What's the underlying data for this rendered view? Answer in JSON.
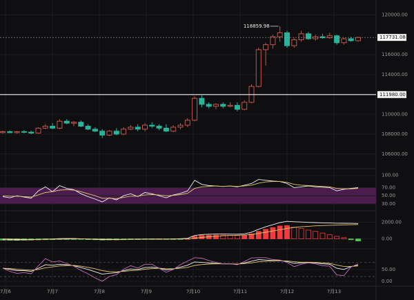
{
  "x_axis": {
    "labels": [
      "7月6",
      "7月7",
      "7月8",
      "7月9",
      "7月10",
      "7月11",
      "7月12",
      "7月13"
    ]
  },
  "chart_data": [
    {
      "type": "candlestick",
      "up_color": "#c4544c",
      "down_color": "#2bb39a",
      "ylim": [
        104800,
        121500
      ],
      "yticks": [
        {
          "value": 106000,
          "label": "106000.00"
        },
        {
          "value": 108000,
          "label": "108000.00"
        },
        {
          "value": 110000,
          "label": "110000.00"
        },
        {
          "value": 114000,
          "label": "114000.00"
        },
        {
          "value": 116000,
          "label": "116000.00"
        },
        {
          "value": 120000,
          "label": "120000.00"
        }
      ],
      "open": [
        108150,
        108250,
        108150,
        108250,
        108200,
        108100,
        108600,
        108800,
        108600,
        109300,
        109100,
        109200,
        108800,
        108500,
        108300,
        107900,
        108300,
        108000,
        108500,
        108700,
        108500,
        108900,
        108800,
        108600,
        108300,
        108700,
        108900,
        109400,
        111600,
        111000,
        110800,
        111000,
        110800,
        110900,
        110500,
        111200,
        112800,
        116500,
        117000,
        117800,
        118200,
        116900,
        117500,
        118100,
        117600,
        117800,
        117700,
        117900,
        117200,
        117600,
        117400
      ],
      "high": [
        108350,
        108350,
        108300,
        108400,
        108350,
        108700,
        109000,
        109100,
        109500,
        109500,
        109300,
        109400,
        109000,
        108700,
        108500,
        108400,
        108600,
        108700,
        108900,
        109000,
        109100,
        109200,
        109000,
        109000,
        108900,
        109100,
        109600,
        111800,
        111900,
        111200,
        111100,
        111200,
        111200,
        111200,
        111400,
        113000,
        116700,
        117200,
        118000,
        118859.98,
        118400,
        117700,
        118400,
        118300,
        118000,
        118100,
        118200,
        118000,
        117700,
        117800,
        117800
      ],
      "low": [
        108050,
        108100,
        108050,
        108100,
        108000,
        108050,
        108500,
        108500,
        108500,
        109000,
        108800,
        108700,
        108400,
        108200,
        107600,
        107800,
        107900,
        107900,
        108400,
        108300,
        108300,
        108600,
        108400,
        108200,
        108200,
        108500,
        108700,
        109300,
        110700,
        110600,
        110500,
        110600,
        110700,
        110300,
        110400,
        111100,
        112700,
        114900,
        116600,
        117300,
        116700,
        116700,
        117300,
        117500,
        117400,
        117600,
        117600,
        117000,
        117000,
        117300,
        117300
      ],
      "close": [
        108250,
        108150,
        108250,
        108200,
        108100,
        108600,
        108800,
        108600,
        109300,
        109100,
        109200,
        108800,
        108500,
        108300,
        107900,
        108300,
        108000,
        108500,
        108700,
        108500,
        108900,
        108800,
        108600,
        108300,
        108700,
        108900,
        109400,
        111600,
        111000,
        110800,
        111000,
        110800,
        110900,
        110500,
        111200,
        112800,
        116500,
        117000,
        117800,
        118200,
        116900,
        117500,
        118100,
        117600,
        117800,
        117700,
        117900,
        117200,
        117600,
        117400,
        117731.08
      ],
      "price_line": {
        "value": 111980,
        "label": "111980.00"
      }
    },
    {
      "type": "line",
      "ylim": [
        25,
        108
      ],
      "yticks": [
        {
          "value": 100,
          "label": "100.00"
        },
        {
          "value": 70,
          "label": "70.00"
        },
        {
          "value": 50,
          "label": "50.00"
        },
        {
          "value": 30,
          "label": "30.00"
        }
      ],
      "band": [
        30,
        70
      ],
      "band_color": "#4b1d4f",
      "series": [
        {
          "color": "#f2f2f2",
          "values": [
            48,
            45,
            50,
            47,
            44,
            62,
            72,
            60,
            75,
            68,
            65,
            55,
            48,
            42,
            35,
            45,
            40,
            50,
            55,
            48,
            58,
            55,
            50,
            45,
            52,
            56,
            62,
            88,
            78,
            75,
            74,
            73,
            74,
            72,
            76,
            80,
            90,
            88,
            86,
            85,
            80,
            70,
            72,
            74,
            72,
            71,
            70,
            62,
            66,
            68,
            70
          ]
        },
        {
          "color": "#e6c86e",
          "values": [
            50,
            49,
            49,
            48,
            47,
            52,
            58,
            60,
            64,
            65,
            64,
            60,
            55,
            50,
            44,
            44,
            43,
            46,
            49,
            49,
            52,
            53,
            52,
            50,
            51,
            53,
            56,
            68,
            72,
            73,
            74,
            73,
            74,
            73,
            74,
            76,
            81,
            84,
            85,
            85,
            83,
            78,
            76,
            75,
            74,
            73,
            72,
            68,
            67,
            67,
            68
          ]
        }
      ]
    },
    {
      "type": "macd",
      "ylim": [
        -700,
        2700
      ],
      "yticks": [
        {
          "value": 2000,
          "label": "2000.00"
        },
        {
          "value": 0,
          "label": "0.00"
        }
      ],
      "up_color": "#f03c3c",
      "down_color": "#4fc24f",
      "values": [
        -150,
        -160,
        -170,
        -150,
        -140,
        -120,
        -100,
        -90,
        -60,
        -50,
        -40,
        -60,
        -80,
        -100,
        -130,
        -120,
        -120,
        -100,
        -80,
        -80,
        -60,
        -50,
        -50,
        -60,
        -40,
        -20,
        10,
        300,
        420,
        450,
        460,
        450,
        430,
        400,
        420,
        600,
        900,
        1150,
        1350,
        1550,
        1600,
        1400,
        1250,
        1050,
        900,
        700,
        500,
        300,
        150,
        -100,
        -250
      ],
      "series": [
        {
          "color": "#f2f2f2",
          "values": [
            -100,
            -110,
            -120,
            -110,
            -100,
            -60,
            -20,
            -10,
            30,
            40,
            40,
            10,
            -20,
            -50,
            -100,
            -90,
            -90,
            -60,
            -40,
            -40,
            -20,
            -10,
            -10,
            -20,
            0,
            20,
            60,
            400,
            520,
            560,
            580,
            580,
            570,
            560,
            600,
            800,
            1150,
            1450,
            1700,
            1950,
            2100,
            2050,
            2020,
            1980,
            1950,
            1920,
            1900,
            1880,
            1870,
            1860,
            1850
          ]
        },
        {
          "color": "#e6c86e",
          "values": [
            0,
            -20,
            -40,
            -50,
            -60,
            -60,
            -50,
            -40,
            -30,
            -20,
            -10,
            -5,
            -10,
            -20,
            -35,
            -45,
            -55,
            -60,
            -55,
            -50,
            -45,
            -40,
            -35,
            -30,
            -25,
            -15,
            0,
            80,
            170,
            250,
            320,
            370,
            410,
            440,
            470,
            530,
            650,
            790,
            940,
            1100,
            1260,
            1370,
            1450,
            1510,
            1560,
            1600,
            1630,
            1650,
            1680,
            1700,
            1720
          ]
        }
      ]
    },
    {
      "type": "line",
      "ylim": [
        -24,
        123
      ],
      "yticks": [
        {
          "value": 50,
          "label": "50.00"
        },
        {
          "value": 0,
          "label": "0.00"
        }
      ],
      "levels": [
        80,
        20
      ],
      "series": [
        {
          "color": "#f2f2f2",
          "values": [
            55,
            50,
            45,
            45,
            42,
            55,
            70,
            68,
            72,
            70,
            66,
            58,
            50,
            40,
            30,
            34,
            36,
            45,
            52,
            50,
            58,
            60,
            55,
            48,
            52,
            60,
            68,
            82,
            80,
            78,
            76,
            74,
            74,
            72,
            78,
            85,
            92,
            90,
            88,
            88,
            84,
            76,
            78,
            80,
            78,
            74,
            72,
            55,
            50,
            62,
            68
          ]
        },
        {
          "color": "#e6c86e",
          "values": [
            55,
            54,
            51,
            49,
            47,
            50,
            57,
            61,
            65,
            67,
            67,
            64,
            59,
            53,
            45,
            41,
            40,
            42,
            45,
            47,
            51,
            54,
            55,
            53,
            53,
            55,
            59,
            67,
            71,
            73,
            74,
            74,
            74,
            73,
            75,
            78,
            83,
            85,
            86,
            87,
            86,
            83,
            81,
            81,
            80,
            78,
            76,
            69,
            63,
            63,
            65
          ]
        },
        {
          "color": "#c46fb8",
          "values": [
            55,
            42,
            33,
            37,
            32,
            65,
            96,
            82,
            86,
            76,
            64,
            46,
            32,
            14,
            0,
            20,
            28,
            51,
            66,
            56,
            72,
            72,
            55,
            38,
            50,
            70,
            86,
            100,
            98,
            88,
            80,
            74,
            74,
            70,
            84,
            99,
            100,
            100,
            92,
            90,
            80,
            62,
            72,
            78,
            74,
            66,
            64,
            27,
            24,
            60,
            74
          ]
        }
      ]
    }
  ]
}
